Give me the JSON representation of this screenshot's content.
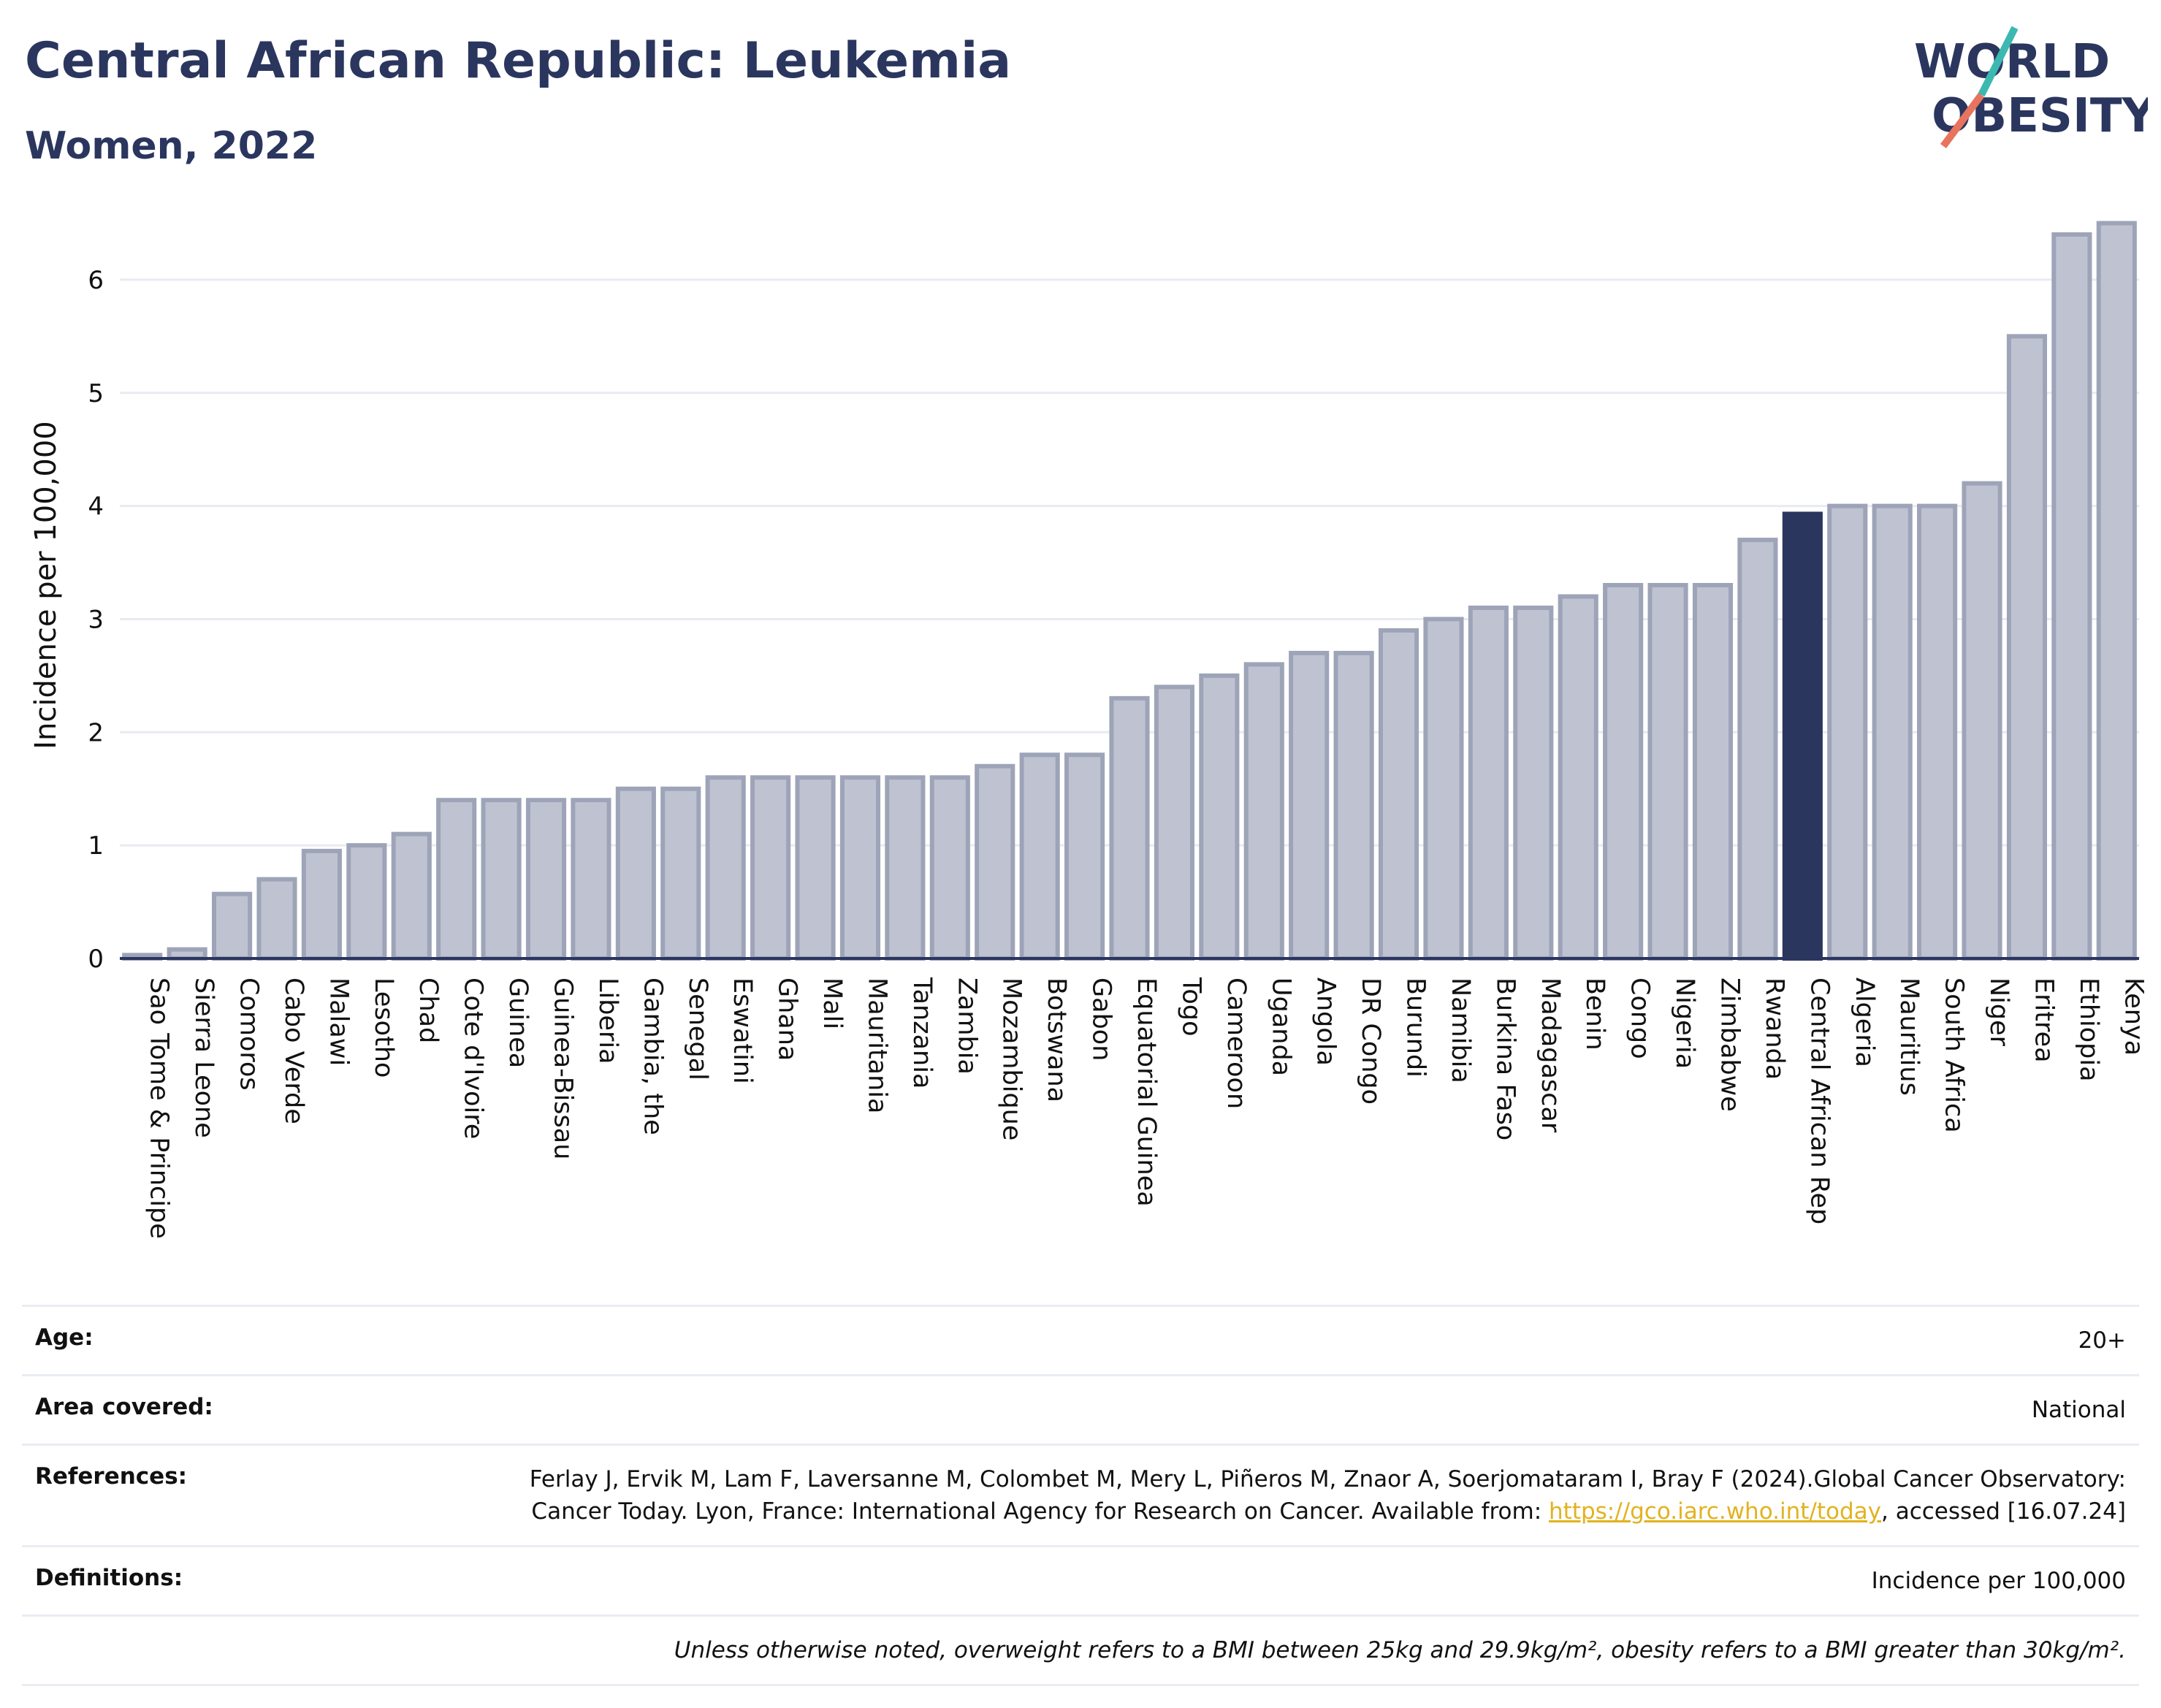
{
  "header": {
    "title": "Central African Republic: Leukemia",
    "subtitle": "Women, 2022",
    "logo_text": [
      "WORLD",
      "OBESITY"
    ]
  },
  "colors": {
    "bar_fill": "#bfc3d1",
    "bar_stroke": "#9ea4b8",
    "highlight": "#2b365f",
    "title": "#2b365f",
    "logo_teal": "#3bb8b0",
    "logo_coral": "#e8735f",
    "link": "#e2b21f"
  },
  "chart_data": {
    "type": "bar",
    "ylabel": "Incidence per 100,000",
    "ylim": [
      0,
      6.6
    ],
    "yticks": [
      0,
      1,
      2,
      3,
      4,
      5,
      6
    ],
    "grid": true,
    "highlight_category": "Central African Rep",
    "categories": [
      "Sao Tome & Principe",
      "Sierra Leone",
      "Comoros",
      "Cabo Verde",
      "Malawi",
      "Lesotho",
      "Chad",
      "Cote d'Ivoire",
      "Guinea",
      "Guinea-Bissau",
      "Liberia",
      "Gambia, the",
      "Senegal",
      "Eswatini",
      "Ghana",
      "Mali",
      "Mauritania",
      "Tanzania",
      "Zambia",
      "Mozambique",
      "Botswana",
      "Gabon",
      "Equatorial Guinea",
      "Togo",
      "Cameroon",
      "Uganda",
      "Angola",
      "DR Congo",
      "Burundi",
      "Namibia",
      "Burkina Faso",
      "Madagascar",
      "Benin",
      "Congo",
      "Nigeria",
      "Zimbabwe",
      "Rwanda",
      "Central African Rep",
      "Algeria",
      "Mauritius",
      "South Africa",
      "Niger",
      "Eritrea",
      "Ethiopia",
      "Kenya"
    ],
    "values": [
      0.03,
      0.08,
      0.57,
      0.7,
      0.95,
      1.0,
      1.1,
      1.4,
      1.4,
      1.4,
      1.4,
      1.5,
      1.5,
      1.6,
      1.6,
      1.6,
      1.6,
      1.6,
      1.6,
      1.7,
      1.8,
      1.8,
      2.3,
      2.4,
      2.5,
      2.6,
      2.7,
      2.7,
      2.9,
      3.0,
      3.1,
      3.1,
      3.2,
      3.3,
      3.3,
      3.3,
      3.7,
      3.93,
      4.0,
      4.0,
      4.0,
      4.2,
      5.5,
      6.4,
      6.5
    ]
  },
  "meta": {
    "age_label": "Age:",
    "age_value": "20+",
    "area_label": "Area covered:",
    "area_value": "National",
    "refs_label": "References:",
    "refs_text_1": "Ferlay J, Ervik M, Lam F, Laversanne M, Colombet M, Mery L, Piñeros M, Znaor A, Soerjomataram I, Bray F (2024).Global Cancer Observatory: Cancer Today. Lyon, France: International Agency for Research on Cancer. Available from: ",
    "refs_link": "https://gco.iarc.who.int/today",
    "refs_text_2": ", accessed [16.07.24]",
    "defs_label": "Definitions:",
    "defs_value": "Incidence per 100,000",
    "note": "Unless otherwise noted, overweight refers to a BMI between 25kg and 29.9kg/m², obesity refers to a BMI greater than 30kg/m²."
  }
}
